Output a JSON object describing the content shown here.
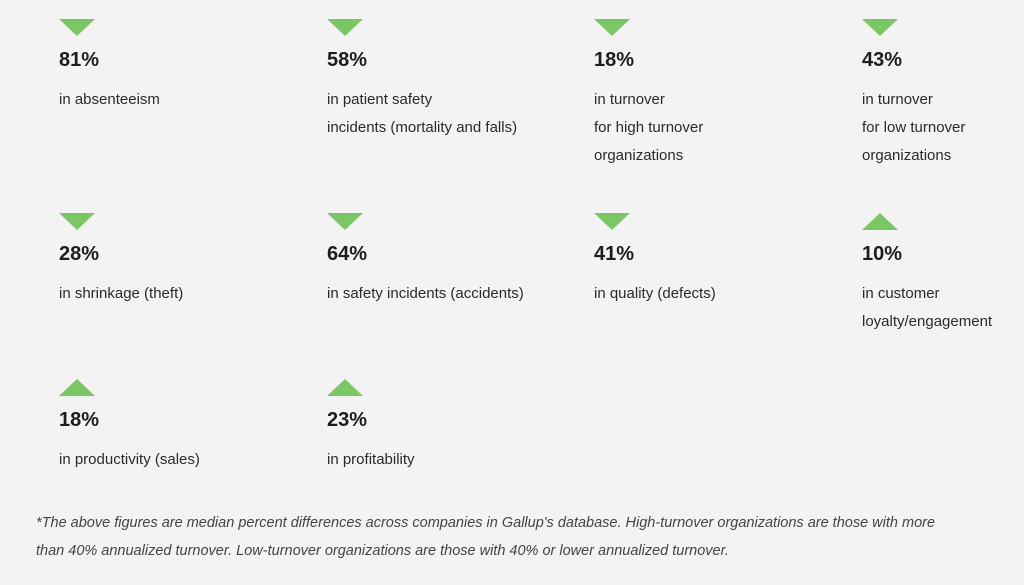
{
  "stats": [
    {
      "direction": "down",
      "value": "81%",
      "lines": [
        "in absenteeism"
      ]
    },
    {
      "direction": "down",
      "value": "58%",
      "lines": [
        "in patient safety",
        "incidents (mortality and falls)"
      ]
    },
    {
      "direction": "down",
      "value": "18%",
      "lines": [
        "in turnover",
        "for high turnover",
        "organizations"
      ]
    },
    {
      "direction": "down",
      "value": "43%",
      "lines": [
        "in turnover",
        "for low turnover",
        "organizations"
      ]
    },
    {
      "direction": "down",
      "value": "28%",
      "lines": [
        "in shrinkage (theft)"
      ]
    },
    {
      "direction": "down",
      "value": "64%",
      "lines": [
        "in safety incidents (accidents)"
      ]
    },
    {
      "direction": "down",
      "value": "41%",
      "lines": [
        "in quality (defects)"
      ]
    },
    {
      "direction": "up",
      "value": "10%",
      "lines": [
        "in customer",
        "loyalty/engagement"
      ]
    },
    {
      "direction": "up",
      "value": "18%",
      "lines": [
        "in productivity (sales)"
      ]
    },
    {
      "direction": "up",
      "value": "23%",
      "lines": [
        "in profitability"
      ]
    }
  ],
  "footnote": "*The above figures are median percent differences across companies in Gallup's database. High-turnover organizations are those with more than 40% annualized turnover. Low-turnover organizations are those with 40% or lower annualized turnover.",
  "colors": {
    "arrow": "#7bc665",
    "background": "#f3f3f3"
  }
}
